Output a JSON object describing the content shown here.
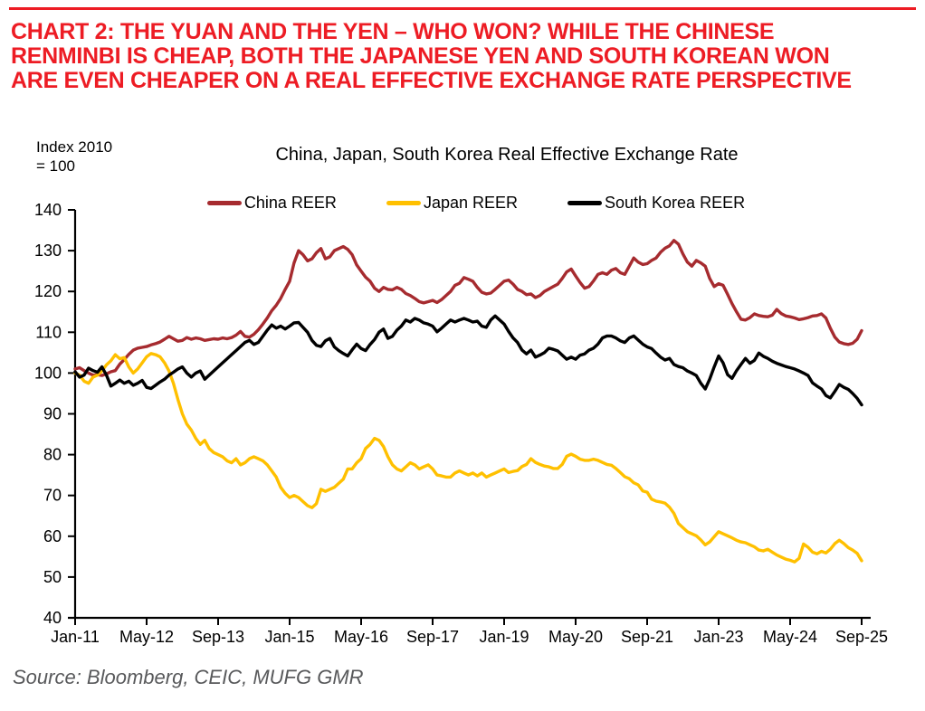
{
  "header": {
    "accent_color": "#ED1C24",
    "headline_lines": [
      "CHART 2: THE YUAN AND THE YEN – WHO WON? WHILE THE CHINESE",
      "RENMINBI IS CHEAP, BOTH THE JAPANESE YEN AND SOUTH KOREAN WON",
      "ARE EVEN CHEAPER ON A REAL EFFECTIVE EXCHANGE RATE PERSPECTIVE"
    ]
  },
  "chart_data": {
    "type": "line",
    "title": "China, Japan, South Korea Real Effective Exchange Rate",
    "y_axis_note_lines": [
      "Index 2010",
      "= 100"
    ],
    "ylim": [
      40,
      140
    ],
    "y_ticks": [
      140,
      130,
      120,
      110,
      100,
      90,
      80,
      70,
      60,
      50,
      40
    ],
    "x_tick_labels": [
      "Jan-11",
      "May-12",
      "Sep-13",
      "Jan-15",
      "May-16",
      "Sep-17",
      "Jan-19",
      "May-20",
      "Sep-21",
      "Jan-23",
      "May-24",
      "Sep-25"
    ],
    "x_tick_indices": [
      0,
      16,
      32,
      48,
      64,
      80,
      96,
      112,
      128,
      144,
      160,
      176
    ],
    "x_start": "Jan-2011",
    "x_end": "Sep-2025",
    "frequency": "monthly",
    "n_points": 177,
    "grid": false,
    "legend_position": "top",
    "series": [
      {
        "name": "China REER",
        "color": "#A62B2F",
        "values": [
          101.0,
          101.3,
          100.6,
          100.0,
          99.5,
          99.6,
          99.4,
          99.8,
          100.3,
          100.6,
          102.2,
          103.3,
          104.6,
          105.6,
          106.1,
          106.3,
          106.5,
          106.9,
          107.2,
          107.6,
          108.3,
          109.0,
          108.4,
          107.8,
          108.0,
          108.7,
          108.3,
          108.6,
          108.4,
          108.0,
          108.2,
          108.4,
          108.3,
          108.6,
          108.4,
          108.7,
          109.3,
          110.2,
          109.0,
          108.8,
          109.5,
          110.6,
          112.0,
          113.5,
          115.3,
          116.6,
          118.3,
          120.5,
          122.5,
          127.0,
          130.0,
          129.0,
          127.5,
          128.0,
          129.5,
          130.5,
          128.0,
          128.5,
          130.0,
          130.5,
          131.0,
          130.3,
          129.0,
          126.5,
          125.0,
          123.5,
          122.5,
          120.8,
          120.0,
          121.0,
          120.5,
          120.4,
          121.0,
          120.5,
          119.5,
          119.0,
          118.3,
          117.5,
          117.2,
          117.5,
          117.8,
          117.3,
          118.0,
          119.0,
          120.0,
          121.5,
          122.0,
          123.4,
          123.0,
          122.5,
          121.0,
          119.8,
          119.4,
          119.6,
          120.5,
          121.5,
          122.5,
          122.8,
          121.8,
          120.5,
          120.0,
          119.2,
          119.4,
          118.5,
          119.0,
          120.0,
          120.6,
          121.2,
          121.8,
          123.2,
          124.8,
          125.5,
          123.8,
          122.2,
          120.8,
          121.2,
          122.6,
          124.2,
          124.6,
          124.2,
          125.2,
          125.6,
          124.6,
          124.2,
          126.2,
          128.2,
          127.2,
          126.6,
          126.8,
          127.6,
          128.2,
          129.6,
          130.6,
          131.2,
          132.5,
          131.6,
          129.2,
          127.2,
          126.2,
          127.6,
          127.0,
          126.2,
          123.2,
          121.2,
          121.9,
          121.5,
          119.3,
          117.0,
          115.0,
          113.2,
          113.0,
          113.6,
          114.5,
          114.1,
          113.9,
          113.8,
          114.2,
          115.6,
          114.6,
          114.0,
          113.8,
          113.5,
          113.1,
          113.3,
          113.6,
          114.0,
          114.1,
          114.5,
          113.5,
          111.0,
          108.8,
          107.6,
          107.2,
          107.0,
          107.3,
          108.3,
          110.4
        ]
      },
      {
        "name": "Japan REER",
        "color": "#FFC000",
        "values": [
          100.0,
          99.5,
          98.0,
          97.5,
          99.0,
          99.5,
          100.5,
          102.0,
          103.0,
          104.5,
          103.5,
          103.8,
          101.5,
          100.0,
          101.0,
          102.5,
          104.0,
          104.8,
          104.5,
          104.0,
          102.5,
          100.5,
          97.5,
          93.5,
          90.0,
          87.5,
          86.0,
          84.0,
          82.5,
          83.5,
          81.5,
          80.5,
          80.0,
          79.5,
          78.5,
          78.0,
          79.0,
          77.5,
          78.0,
          79.0,
          79.5,
          79.0,
          78.5,
          77.5,
          76.0,
          74.5,
          72.0,
          70.5,
          69.5,
          70.0,
          69.5,
          68.5,
          67.5,
          67.0,
          68.0,
          71.5,
          71.0,
          71.5,
          72.0,
          73.0,
          74.0,
          76.5,
          76.5,
          78.0,
          79.0,
          81.5,
          82.5,
          84.0,
          83.5,
          82.0,
          79.5,
          77.5,
          76.5,
          76.0,
          77.0,
          78.0,
          77.5,
          76.5,
          77.0,
          77.5,
          76.5,
          75.0,
          74.8,
          74.5,
          74.5,
          75.5,
          76.0,
          75.5,
          75.0,
          75.5,
          74.8,
          75.5,
          74.5,
          75.0,
          75.5,
          76.0,
          76.5,
          75.6,
          75.9,
          76.1,
          77.1,
          77.6,
          79.0,
          78.1,
          77.6,
          77.2,
          77.0,
          76.6,
          76.6,
          77.6,
          79.6,
          80.1,
          79.6,
          78.9,
          78.6,
          78.6,
          78.9,
          78.6,
          78.1,
          77.6,
          77.4,
          76.6,
          75.6,
          74.6,
          74.1,
          73.1,
          72.6,
          71.1,
          70.8,
          69.1,
          68.6,
          68.4,
          68.1,
          67.1,
          65.6,
          63.1,
          62.1,
          61.1,
          60.6,
          60.1,
          59.1,
          57.9,
          58.6,
          59.9,
          61.1,
          60.6,
          60.1,
          59.6,
          59.0,
          58.6,
          58.4,
          57.9,
          57.4,
          56.6,
          56.4,
          56.8,
          56.1,
          55.4,
          54.9,
          54.4,
          54.1,
          53.7,
          54.6,
          58.1,
          57.3,
          56.1,
          55.7,
          56.3,
          55.9,
          56.8,
          58.2,
          59.0,
          58.2,
          57.2,
          56.6,
          55.8,
          54.0
        ]
      },
      {
        "name": "South Korea REER",
        "color": "#000000",
        "values": [
          100.3,
          99.0,
          99.5,
          101.2,
          100.6,
          100.2,
          101.5,
          99.5,
          96.8,
          97.5,
          98.3,
          97.5,
          98.0,
          97.0,
          97.5,
          98.2,
          96.5,
          96.2,
          97.0,
          97.8,
          98.5,
          99.5,
          100.2,
          101.0,
          101.5,
          100.0,
          99.0,
          100.0,
          100.5,
          98.5,
          99.5,
          100.5,
          101.5,
          102.5,
          103.5,
          104.5,
          105.5,
          106.5,
          107.5,
          108.0,
          107.0,
          107.5,
          109.0,
          110.5,
          111.8,
          111.0,
          111.5,
          110.8,
          111.5,
          112.3,
          112.4,
          111.2,
          110.0,
          108.0,
          106.8,
          106.5,
          107.9,
          108.5,
          106.4,
          105.5,
          104.8,
          104.2,
          105.7,
          107.1,
          106.0,
          105.5,
          107.0,
          108.2,
          110.0,
          110.8,
          108.5,
          109.0,
          110.5,
          111.5,
          113.0,
          112.5,
          113.4,
          113.0,
          112.3,
          112.0,
          111.5,
          110.1,
          111.0,
          112.0,
          113.0,
          112.5,
          113.0,
          113.4,
          113.0,
          112.5,
          112.7,
          111.5,
          111.2,
          113.0,
          114.0,
          113.0,
          112.0,
          110.2,
          108.6,
          107.5,
          105.6,
          104.7,
          105.6,
          103.9,
          104.4,
          105.0,
          106.1,
          105.8,
          105.4,
          104.4,
          103.4,
          103.9,
          103.4,
          104.4,
          104.7,
          105.6,
          106.1,
          107.1,
          108.6,
          109.1,
          109.1,
          108.6,
          107.9,
          107.5,
          108.6,
          109.1,
          108.1,
          107.1,
          106.4,
          106.0,
          104.9,
          103.9,
          103.2,
          103.6,
          102.1,
          101.6,
          101.3,
          100.5,
          100.0,
          99.4,
          97.5,
          96.1,
          98.5,
          101.5,
          104.2,
          102.5,
          99.6,
          98.7,
          100.6,
          102.1,
          103.6,
          102.4,
          103.1,
          104.9,
          104.1,
          103.6,
          102.9,
          102.4,
          102.0,
          101.6,
          101.3,
          101.0,
          100.5,
          100.0,
          99.4,
          97.6,
          96.8,
          96.1,
          94.5,
          93.9,
          95.5,
          97.2,
          96.5,
          96.0,
          95.0,
          93.8,
          92.2
        ]
      }
    ]
  },
  "footer": {
    "source": "Source: Bloomberg, CEIC, MUFG GMR"
  }
}
